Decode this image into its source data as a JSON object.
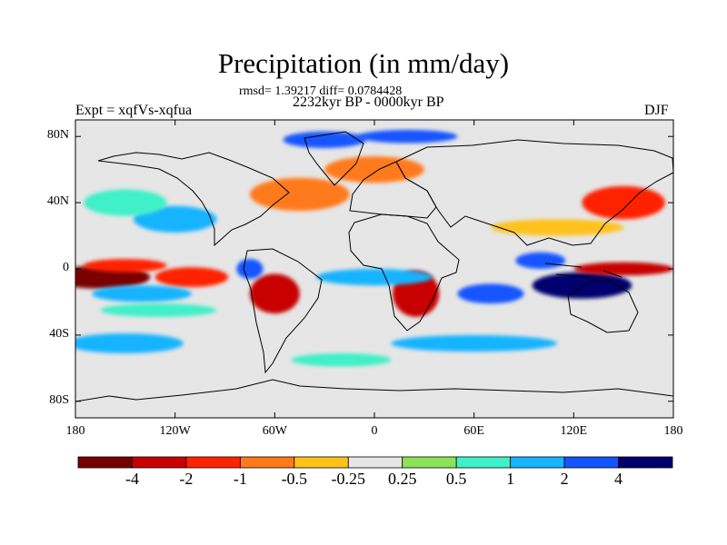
{
  "title": "Precipitation (in mm/day)",
  "stats_text": "rmsd= 1.39217 diff= 0.0784428",
  "period": "2232kyr BP - 0000kyr BP",
  "left_label": "Expt = xqfVs-xqfua",
  "right_label": "DJF",
  "lat_ticks": [
    {
      "value": 80,
      "label": "80N"
    },
    {
      "value": 40,
      "label": "40N"
    },
    {
      "value": 0,
      "label": "0"
    },
    {
      "value": -40,
      "label": "40S"
    },
    {
      "value": -80,
      "label": "80S"
    }
  ],
  "lon_ticks": [
    {
      "value": -180,
      "label": "180"
    },
    {
      "value": -120,
      "label": "120W"
    },
    {
      "value": -60,
      "label": "60W"
    },
    {
      "value": 0,
      "label": "0"
    },
    {
      "value": 60,
      "label": "60E"
    },
    {
      "value": 120,
      "label": "120E"
    },
    {
      "value": 180,
      "label": "180"
    }
  ],
  "colorbar": {
    "colors": [
      "#7a0000",
      "#c80000",
      "#ff2400",
      "#ff7a1a",
      "#ffc21a",
      "#e6e6e6",
      "#8ce35a",
      "#3ff0c8",
      "#19b4ff",
      "#1455ff",
      "#00006e"
    ],
    "labels": [
      "-4",
      "-2",
      "-1",
      "-0.5",
      "-0.25",
      "0.25",
      "0.5",
      "1",
      "2",
      "4"
    ]
  },
  "colors": {
    "background": "#e6e6e6"
  },
  "chart_data": {
    "type": "heatmap",
    "variable": "Precipitation",
    "units": "mm/day",
    "xlim": [
      -180,
      180
    ],
    "ylim": [
      -90,
      90
    ],
    "levels": [
      -4,
      -2,
      -1,
      -0.5,
      -0.25,
      0.25,
      0.5,
      1,
      2,
      4
    ],
    "regions": [
      {
        "lon": -165,
        "lat": -5,
        "rlon": 30,
        "rlat": 7,
        "level": 0
      },
      {
        "lon": -150,
        "lat": 2,
        "rlon": 25,
        "rlat": 4,
        "level": 2
      },
      {
        "lon": -110,
        "lat": -5,
        "rlon": 22,
        "rlat": 6,
        "level": 2
      },
      {
        "lon": -140,
        "lat": -15,
        "rlon": 30,
        "rlat": 5,
        "level": 8
      },
      {
        "lon": -130,
        "lat": -25,
        "rlon": 35,
        "rlat": 4,
        "level": 7
      },
      {
        "lon": -120,
        "lat": 30,
        "rlon": 25,
        "rlat": 8,
        "level": 8
      },
      {
        "lon": -150,
        "lat": 40,
        "rlon": 25,
        "rlat": 8,
        "level": 7
      },
      {
        "lon": -60,
        "lat": -15,
        "rlon": 15,
        "rlat": 12,
        "level": 1
      },
      {
        "lon": -45,
        "lat": 45,
        "rlon": 30,
        "rlat": 10,
        "level": 3
      },
      {
        "lon": -75,
        "lat": 0,
        "rlon": 8,
        "rlat": 6,
        "level": 9
      },
      {
        "lon": 25,
        "lat": -15,
        "rlon": 14,
        "rlat": 14,
        "level": 1
      },
      {
        "lon": 0,
        "lat": -5,
        "rlon": 35,
        "rlat": 5,
        "level": 8
      },
      {
        "lon": 70,
        "lat": -15,
        "rlon": 20,
        "rlat": 6,
        "level": 9
      },
      {
        "lon": 125,
        "lat": -10,
        "rlon": 30,
        "rlat": 8,
        "level": 10
      },
      {
        "lon": 100,
        "lat": 5,
        "rlon": 15,
        "rlat": 5,
        "level": 9
      },
      {
        "lon": 150,
        "lat": 0,
        "rlon": 30,
        "rlat": 4,
        "level": 1
      },
      {
        "lon": 150,
        "lat": 40,
        "rlon": 25,
        "rlat": 10,
        "level": 2
      },
      {
        "lon": 110,
        "lat": 25,
        "rlon": 40,
        "rlat": 5,
        "level": 4
      },
      {
        "lon": 0,
        "lat": 60,
        "rlon": 30,
        "rlat": 8,
        "level": 3
      },
      {
        "lon": -30,
        "lat": 78,
        "rlon": 25,
        "rlat": 5,
        "level": 9
      },
      {
        "lon": 20,
        "lat": 80,
        "rlon": 30,
        "rlat": 4,
        "level": 9
      },
      {
        "lon": -150,
        "lat": -45,
        "rlon": 35,
        "rlat": 6,
        "level": 8
      },
      {
        "lon": 60,
        "lat": -45,
        "rlon": 50,
        "rlat": 5,
        "level": 8
      },
      {
        "lon": -20,
        "lat": -55,
        "rlon": 30,
        "rlat": 4,
        "level": 7
      }
    ]
  }
}
